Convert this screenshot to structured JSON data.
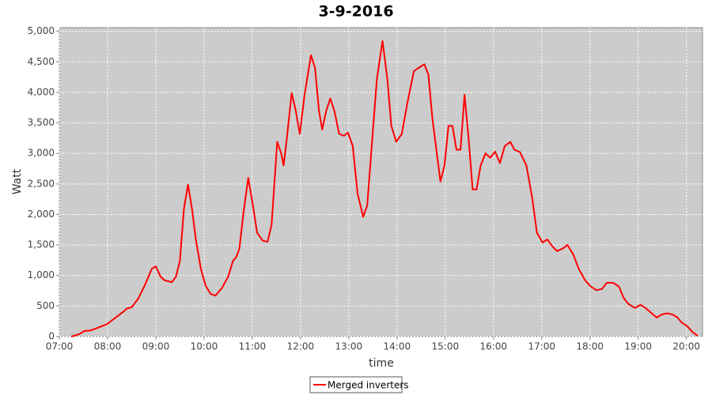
{
  "chart_data": {
    "type": "line",
    "title": "3-9-2016",
    "x_label": "time",
    "y_label": "Watt",
    "x": [
      "07:15",
      "07:25",
      "07:31",
      "07:39",
      "07:49",
      "07:59",
      "08:09",
      "08:19",
      "08:24",
      "08:30",
      "08:38",
      "08:46",
      "08:55",
      "09:00",
      "09:06",
      "09:11",
      "09:20",
      "09:25",
      "09:30",
      "09:35",
      "09:40",
      "09:45",
      "09:50",
      "09:56",
      "10:02",
      "10:08",
      "10:14",
      "10:22",
      "10:30",
      "10:36",
      "10:40",
      "10:44",
      "10:49",
      "10:55",
      "11:00",
      "11:06",
      "11:13",
      "11:19",
      "11:24",
      "11:31",
      "11:36",
      "11:39",
      "11:43",
      "11:49",
      "11:54",
      "11:59",
      "12:05",
      "12:13",
      "12:18",
      "12:23",
      "12:27",
      "12:32",
      "12:37",
      "12:42",
      "12:48",
      "12:54",
      "12:59",
      "13:05",
      "13:11",
      "13:18",
      "13:23",
      "13:29",
      "13:35",
      "13:42",
      "13:48",
      "13:53",
      "13:59",
      "14:06",
      "14:13",
      "14:21",
      "14:29",
      "14:34",
      "14:39",
      "14:44",
      "14:49",
      "14:54",
      "14:59",
      "15:04",
      "15:09",
      "15:14",
      "15:19",
      "15:24",
      "15:29",
      "15:34",
      "15:39",
      "15:44",
      "15:50",
      "15:56",
      "16:02",
      "16:08",
      "16:14",
      "16:21",
      "16:26",
      "16:33",
      "16:41",
      "16:48",
      "16:54",
      "17:01",
      "17:07",
      "17:13",
      "17:19",
      "17:26",
      "17:32",
      "17:39",
      "17:46",
      "17:54",
      "18:01",
      "18:08",
      "18:15",
      "18:21",
      "18:29",
      "18:36",
      "18:42",
      "18:48",
      "18:56",
      "19:03",
      "19:09",
      "19:16",
      "19:23",
      "19:29",
      "19:36",
      "19:43",
      "19:49",
      "19:54",
      "20:01",
      "20:07",
      "20:14"
    ],
    "series": [
      {
        "name": "Merged inverters",
        "color": "#ff0000",
        "values": [
          0,
          40,
          90,
          100,
          150,
          200,
          300,
          400,
          460,
          480,
          620,
          830,
          1110,
          1150,
          980,
          920,
          890,
          980,
          1240,
          2090,
          2490,
          2090,
          1570,
          1110,
          830,
          700,
          670,
          790,
          980,
          1240,
          1300,
          1440,
          2020,
          2600,
          2210,
          1700,
          1570,
          1550,
          1830,
          3190,
          3000,
          2800,
          3250,
          3990,
          3700,
          3320,
          3960,
          4610,
          4400,
          3700,
          3390,
          3700,
          3900,
          3700,
          3320,
          3290,
          3340,
          3120,
          2340,
          1960,
          2150,
          3190,
          4220,
          4840,
          4220,
          3450,
          3190,
          3320,
          3830,
          4350,
          4420,
          4460,
          4290,
          3580,
          3060,
          2540,
          2800,
          3450,
          3450,
          3060,
          3060,
          3960,
          3250,
          2410,
          2410,
          2800,
          3000,
          2930,
          3030,
          2840,
          3120,
          3190,
          3060,
          3020,
          2800,
          2280,
          1700,
          1540,
          1590,
          1480,
          1400,
          1440,
          1500,
          1350,
          1110,
          920,
          820,
          760,
          780,
          880,
          880,
          820,
          630,
          530,
          470,
          520,
          470,
          390,
          310,
          360,
          380,
          360,
          310,
          230,
          170,
          80,
          10
        ]
      }
    ],
    "xlim": [
      "07:00",
      "20:20"
    ],
    "xticks": [
      "07:00",
      "08:00",
      "09:00",
      "10:00",
      "11:00",
      "12:00",
      "13:00",
      "14:00",
      "15:00",
      "16:00",
      "17:00",
      "18:00",
      "19:00",
      "20:00"
    ],
    "ylim": [
      0,
      5060
    ],
    "yticks": [
      0,
      500,
      {
        "value": 1000,
        "label": "1,000"
      },
      {
        "value": 1500,
        "label": "1,500"
      },
      {
        "value": 2000,
        "label": "2,000"
      },
      {
        "value": 2500,
        "label": "2,500"
      },
      {
        "value": 3000,
        "label": "3,000"
      },
      {
        "value": 3500,
        "label": "3,500"
      },
      {
        "value": 4000,
        "label": "4,000"
      },
      {
        "value": 4500,
        "label": "4,500"
      },
      {
        "value": 5000,
        "label": "5,000"
      }
    ],
    "grid": true,
    "legend": "bottom"
  }
}
